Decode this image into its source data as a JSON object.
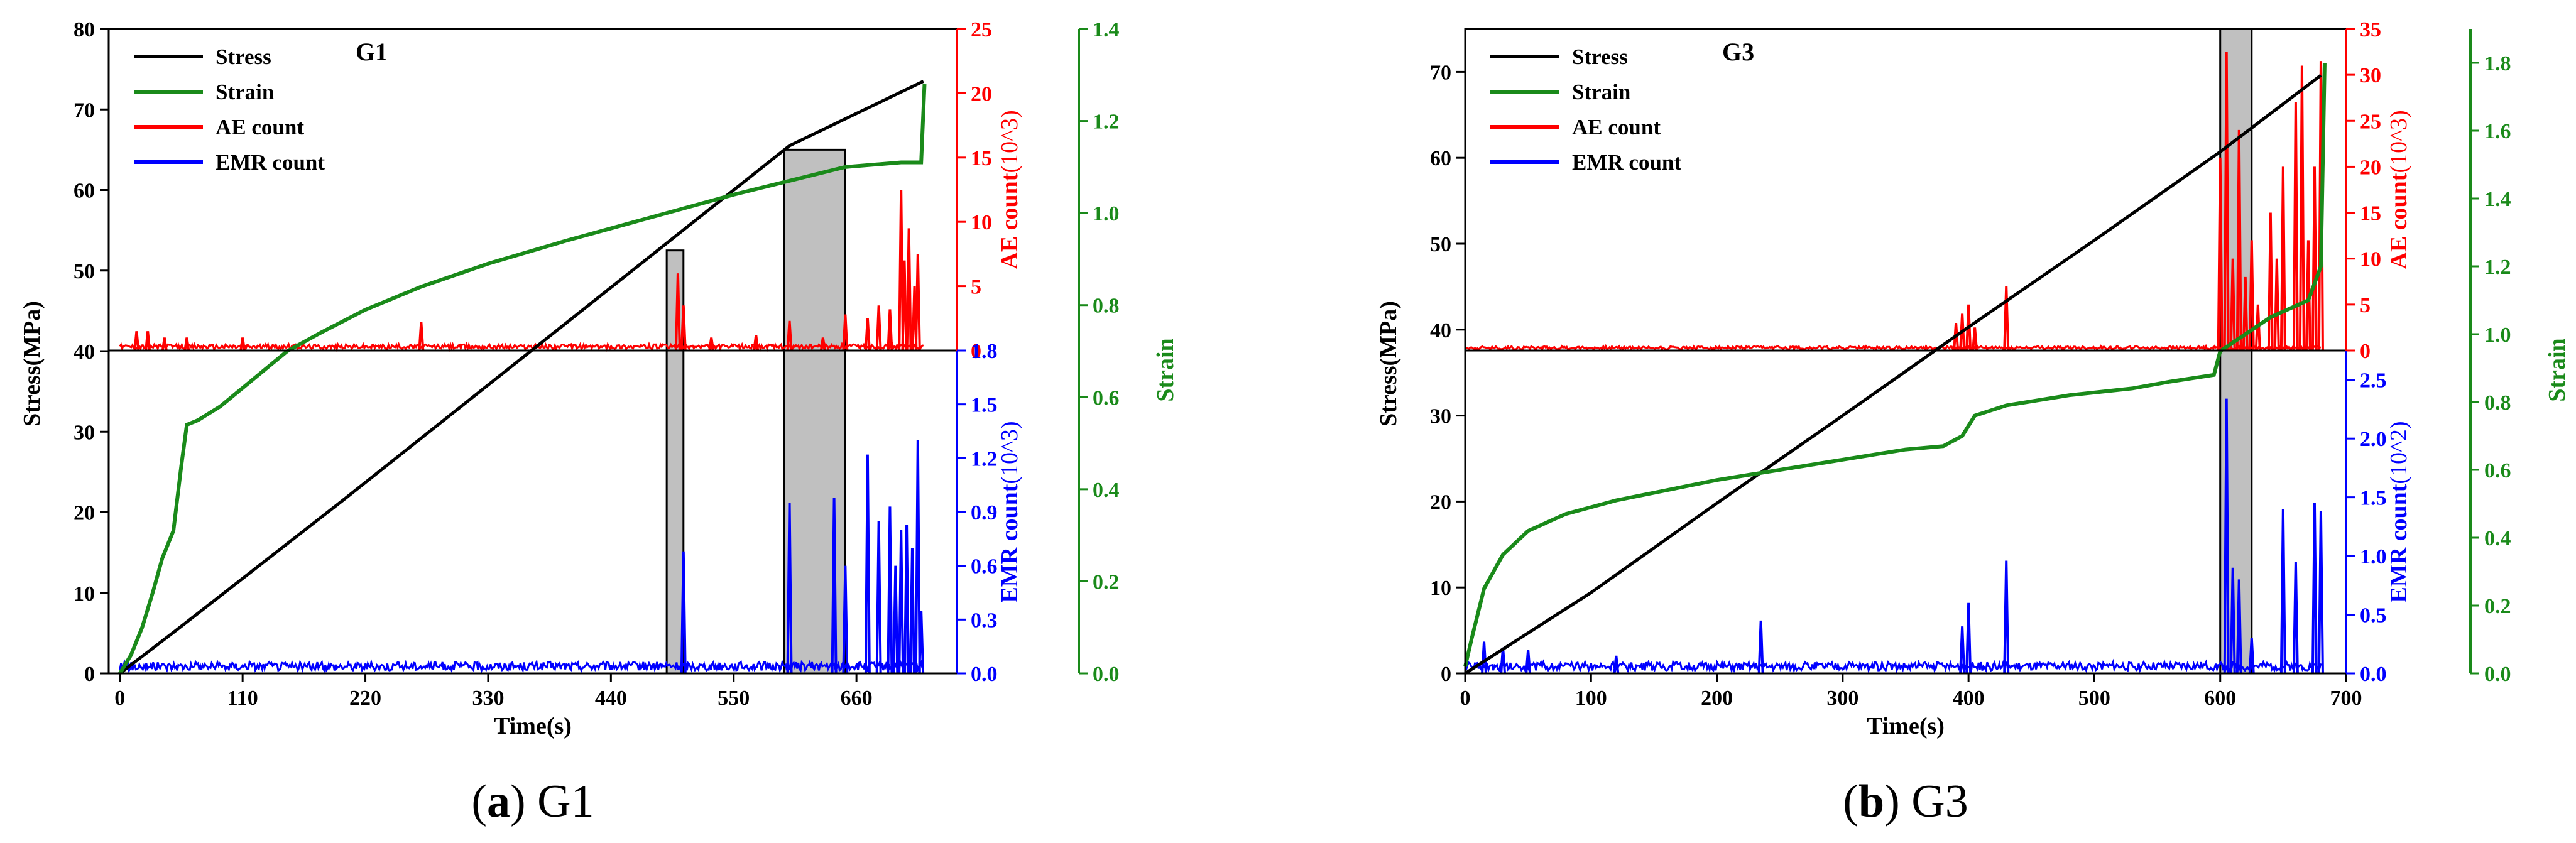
{
  "chart_data": [
    {
      "type": "line",
      "panel": "a",
      "title": "G1",
      "caption_letter": "a",
      "caption_text": "G1",
      "xlabel": "Time(s)",
      "xlim": [
        -10,
        750
      ],
      "xticks": [
        0,
        110,
        220,
        330,
        440,
        550,
        660
      ],
      "legend": [
        "Stress",
        "Strain",
        "AE count",
        "EMR count"
      ],
      "legend_position": "top-left",
      "stress_axis": {
        "label": "Stress(MPa)",
        "lim": [
          0,
          80
        ],
        "ticks": [
          0,
          10,
          20,
          30,
          40,
          50,
          60,
          70,
          80
        ]
      },
      "ae_axis": {
        "label": "AE count(10^3)",
        "lim": [
          0,
          25
        ],
        "ticks": [
          0,
          5,
          10,
          15,
          20,
          25
        ]
      },
      "emr_axis": {
        "label": "EMR count(10^3)",
        "lim": [
          0,
          1.8
        ],
        "ticks": [
          "0.0",
          "0.3",
          "0.6",
          "0.9",
          "1.2",
          "1.5",
          "1.8"
        ]
      },
      "strain_axis": {
        "label": "Strain",
        "lim": [
          0,
          1.4
        ],
        "ticks": [
          "0.0",
          "0.2",
          "0.4",
          "0.6",
          "0.8",
          "1.0",
          "1.2",
          "1.4"
        ]
      },
      "series": [
        {
          "name": "Stress",
          "color": "#000000",
          "points": [
            [
              0,
              0
            ],
            [
              50,
              5.3
            ],
            [
              200,
              21.5
            ],
            [
              400,
              43.5
            ],
            [
              600,
              65.5
            ],
            [
              720,
              73.5
            ]
          ]
        },
        {
          "name": "Strain",
          "color": "#1a8a1a",
          "points": [
            [
              0,
              0
            ],
            [
              10,
              0.04
            ],
            [
              20,
              0.1
            ],
            [
              30,
              0.18
            ],
            [
              38,
              0.25
            ],
            [
              48,
              0.31
            ],
            [
              55,
              0.45
            ],
            [
              60,
              0.54
            ],
            [
              70,
              0.55
            ],
            [
              90,
              0.58
            ],
            [
              110,
              0.62
            ],
            [
              130,
              0.66
            ],
            [
              150,
              0.7
            ],
            [
              180,
              0.74
            ],
            [
              220,
              0.79
            ],
            [
              270,
              0.84
            ],
            [
              330,
              0.89
            ],
            [
              400,
              0.94
            ],
            [
              460,
              0.98
            ],
            [
              550,
              1.04
            ],
            [
              600,
              1.07
            ],
            [
              650,
              1.1
            ],
            [
              700,
              1.11
            ],
            [
              718,
              1.11
            ],
            [
              721,
              1.28
            ]
          ]
        },
        {
          "name": "AE count",
          "color": "#ff0000",
          "baseline": 0.3,
          "spikes": [
            [
              15,
              1.5
            ],
            [
              25,
              1.5
            ],
            [
              40,
              1
            ],
            [
              60,
              1
            ],
            [
              110,
              1
            ],
            [
              270,
              2.2
            ],
            [
              500,
              6
            ],
            [
              505,
              3.5
            ],
            [
              530,
              1
            ],
            [
              570,
              1.2
            ],
            [
              600,
              2.3
            ],
            [
              630,
              1
            ],
            [
              650,
              2.8
            ],
            [
              670,
              2.5
            ],
            [
              680,
              3.5
            ],
            [
              690,
              3.2
            ],
            [
              700,
              12.5
            ],
            [
              703,
              7
            ],
            [
              707,
              9.5
            ],
            [
              712,
              5
            ],
            [
              715,
              7.5
            ]
          ]
        },
        {
          "name": "EMR count",
          "color": "#0000ff",
          "baseline": 0.04,
          "spikes": [
            [
              505,
              0.68
            ],
            [
              600,
              0.95
            ],
            [
              640,
              0.98
            ],
            [
              650,
              0.6
            ],
            [
              670,
              1.22
            ],
            [
              680,
              0.85
            ],
            [
              690,
              0.93
            ],
            [
              695,
              0.6
            ],
            [
              700,
              0.8
            ],
            [
              705,
              0.83
            ],
            [
              710,
              0.7
            ],
            [
              715,
              1.3
            ],
            [
              718,
              0.35
            ]
          ]
        }
      ],
      "shaded_regions": [
        {
          "x": [
            490,
            505
          ],
          "y": [
            0,
            52.5
          ]
        },
        {
          "x": [
            595,
            650
          ],
          "y": [
            0,
            65
          ]
        }
      ]
    },
    {
      "type": "line",
      "panel": "b",
      "title": "G3",
      "caption_letter": "b",
      "caption_text": "G3",
      "xlabel": "Time(s)",
      "xlim": [
        0,
        700
      ],
      "xticks": [
        0,
        100,
        200,
        300,
        400,
        500,
        600,
        700
      ],
      "legend": [
        "Stress",
        "Strain",
        "AE count",
        "EMR count"
      ],
      "legend_position": "top-left",
      "stress_axis": {
        "label": "Stress(MPa)",
        "lim": [
          0,
          75
        ],
        "ticks": [
          0,
          10,
          20,
          30,
          40,
          50,
          60,
          70
        ]
      },
      "ae_axis": {
        "label": "AE count(10^3)",
        "lim": [
          0,
          35
        ],
        "ticks": [
          0,
          5,
          10,
          15,
          20,
          25,
          30,
          35
        ]
      },
      "emr_axis": {
        "label": "EMR count(10^2)",
        "lim": [
          0,
          2.75
        ],
        "ticks": [
          "0.0",
          "0.5",
          "1.0",
          "1.5",
          "2.0",
          "2.5"
        ]
      },
      "strain_axis": {
        "label": "Strain",
        "lim": [
          0,
          1.9
        ],
        "ticks": [
          "0.0",
          "0.2",
          "0.4",
          "0.6",
          "0.8",
          "1.0",
          "1.2",
          "1.4",
          "1.6",
          "1.8"
        ]
      },
      "series": [
        {
          "name": "Stress",
          "color": "#000000",
          "points": [
            [
              0,
              0
            ],
            [
              100,
              9.4
            ],
            [
              200,
              19.8
            ],
            [
              300,
              30
            ],
            [
              400,
              40.3
            ],
            [
              500,
              50.4
            ],
            [
              600,
              60.7
            ],
            [
              680,
              69.6
            ]
          ]
        },
        {
          "name": "Strain",
          "color": "#1a8a1a",
          "points": [
            [
              0,
              0.02
            ],
            [
              5,
              0.1
            ],
            [
              15,
              0.25
            ],
            [
              30,
              0.35
            ],
            [
              50,
              0.42
            ],
            [
              80,
              0.47
            ],
            [
              120,
              0.51
            ],
            [
              160,
              0.54
            ],
            [
              200,
              0.57
            ],
            [
              250,
              0.6
            ],
            [
              300,
              0.63
            ],
            [
              350,
              0.66
            ],
            [
              380,
              0.67
            ],
            [
              395,
              0.7
            ],
            [
              405,
              0.76
            ],
            [
              430,
              0.79
            ],
            [
              480,
              0.82
            ],
            [
              530,
              0.84
            ],
            [
              560,
              0.86
            ],
            [
              595,
              0.88
            ],
            [
              600,
              0.95
            ],
            [
              640,
              1.05
            ],
            [
              670,
              1.1
            ],
            [
              680,
              1.2
            ],
            [
              683,
              1.8
            ]
          ]
        },
        {
          "name": "AE count",
          "color": "#ff0000",
          "baseline": 0.3,
          "spikes": [
            [
              390,
              3
            ],
            [
              395,
              4
            ],
            [
              400,
              5
            ],
            [
              405,
              2.5
            ],
            [
              430,
              7
            ],
            [
              600,
              21
            ],
            [
              605,
              32.5
            ],
            [
              610,
              10
            ],
            [
              615,
              24
            ],
            [
              620,
              8
            ],
            [
              625,
              12
            ],
            [
              630,
              5
            ],
            [
              640,
              15
            ],
            [
              645,
              10
            ],
            [
              650,
              20
            ],
            [
              660,
              27
            ],
            [
              665,
              31
            ],
            [
              670,
              12
            ],
            [
              675,
              20
            ],
            [
              680,
              31.5
            ]
          ]
        },
        {
          "name": "EMR count",
          "color": "#0000ff",
          "baseline": 0.06,
          "spikes": [
            [
              15,
              0.27
            ],
            [
              30,
              0.22
            ],
            [
              50,
              0.2
            ],
            [
              120,
              0.15
            ],
            [
              235,
              0.45
            ],
            [
              395,
              0.4
            ],
            [
              400,
              0.6
            ],
            [
              430,
              0.96
            ],
            [
              605,
              2.34
            ],
            [
              610,
              0.9
            ],
            [
              615,
              0.8
            ],
            [
              625,
              0.3
            ],
            [
              650,
              1.4
            ],
            [
              660,
              0.95
            ],
            [
              675,
              1.45
            ],
            [
              680,
              1.38
            ]
          ]
        }
      ],
      "shaded_regions": [
        {
          "x": [
            600,
            625
          ],
          "y": [
            0,
            75
          ]
        }
      ]
    }
  ]
}
